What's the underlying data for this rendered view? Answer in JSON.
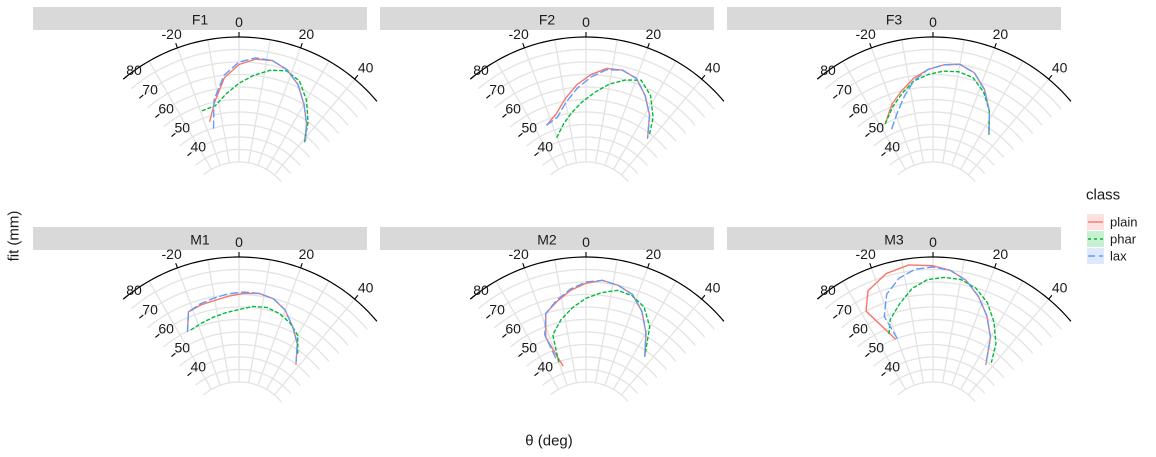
{
  "chart_data": {
    "type": "line",
    "coord": "polar",
    "x_axis_title": "θ (deg)",
    "y_axis_title": "fit (mm)",
    "theta_range": [
      -40,
      50
    ],
    "theta_ticks": [
      -20,
      0,
      20,
      40
    ],
    "r_range": [
      30,
      80
    ],
    "r_ticks": [
      40,
      50,
      60,
      70,
      80
    ],
    "legend": {
      "title": "class",
      "position": "right",
      "items": [
        {
          "key": "plain",
          "label": "plain",
          "color": "#F8766D",
          "dash": "none"
        },
        {
          "key": "phar",
          "label": "phar",
          "color": "#00BA38",
          "dash": "3,3"
        },
        {
          "key": "lax",
          "label": "lax",
          "color": "#619CFF",
          "dash": "7,4"
        }
      ]
    },
    "panels": [
      {
        "label": "F1",
        "series": {
          "plain": {
            "theta": [
              -17,
              -12,
              -6,
              0,
              6,
              12,
              18,
              24,
              30,
              36,
              41
            ],
            "r": [
              48,
              55,
              64,
              69,
              71.5,
              72,
              70,
              66,
              60,
              54,
              48
            ]
          },
          "phar": {
            "theta": [
              -19,
              -12,
              -6,
              0,
              6,
              12,
              18,
              24,
              30,
              36,
              41
            ],
            "r": [
              53,
              53.5,
              57.5,
              61.5,
              65,
              68,
              69.5,
              67.5,
              62,
              55,
              48
            ]
          },
          "lax": {
            "theta": [
              -16,
              -12,
              -6,
              0,
              6,
              12,
              18,
              24,
              30,
              36,
              41
            ],
            "r": [
              45,
              56,
              65,
              70,
              72,
              72,
              70,
              66,
              60,
              54,
              48.5
            ]
          }
        }
      },
      {
        "label": "F2",
        "series": {
          "plain": {
            "theta": [
              -23,
              -16,
              -10,
              -4,
              2,
              8,
              14,
              20,
              26,
              32,
              38
            ],
            "r": [
              48,
              51,
              56,
              61,
              65,
              68,
              68.5,
              67,
              62,
              56,
              48
            ]
          },
          "phar": {
            "theta": [
              -20,
              -14,
              -8,
              -2,
              4,
              10,
              16,
              22,
              28,
              34,
              38
            ],
            "r": [
              42,
              46,
              50,
              54,
              58,
              62,
              65,
              67,
              63,
              56,
              49
            ]
          },
          "lax": {
            "theta": [
              -23,
              -16,
              -10,
              -4,
              2,
              8,
              14,
              20,
              26,
              32,
              38
            ],
            "r": [
              48,
              49.5,
              54.5,
              59.5,
              64,
              67.5,
              68.5,
              67,
              62,
              56,
              48
            ]
          }
        }
      },
      {
        "label": "F3",
        "series": {
          "plain": {
            "theta": [
              -27,
              -20,
              -14,
              -8,
              -2,
              4,
              10,
              16,
              22,
              28,
              34
            ],
            "r": [
              50,
              56,
              60,
              64,
              67,
              69,
              70,
              68,
              63,
              56,
              48
            ]
          },
          "phar": {
            "theta": [
              -27,
              -20,
              -14,
              -8,
              -2,
              4,
              10,
              16,
              22,
              28,
              34
            ],
            "r": [
              50,
              55,
              59,
              63,
              65,
              66.5,
              67,
              66,
              62,
              56,
              48
            ]
          },
          "lax": {
            "theta": [
              -25,
              -19,
              -13,
              -8,
              -2,
              4,
              10,
              16,
              22,
              28,
              34
            ],
            "r": [
              47,
              52,
              58,
              63,
              67,
              69,
              70,
              68,
              63,
              56,
              48
            ]
          }
        }
      },
      {
        "label": "M1",
        "series": {
          "plain": {
            "theta": [
              -26,
              -22,
              -16,
              -10,
              -4,
              2,
              8,
              14,
              20,
              26,
              32,
              38
            ],
            "r": [
              55,
              62,
              63,
              63.5,
              64.5,
              65.5,
              66,
              65,
              62,
              57,
              52,
              45
            ]
          },
          "phar": {
            "theta": [
              -24,
              -18,
              -12,
              -6,
              0,
              6,
              12,
              18,
              24,
              30,
              35
            ],
            "r": [
              55,
              56,
              57,
              58,
              59,
              60.5,
              61,
              60,
              58,
              55,
              49
            ]
          },
          "lax": {
            "theta": [
              -26,
              -22,
              -16,
              -10,
              -4,
              2,
              8,
              14,
              20,
              26,
              32,
              37
            ],
            "r": [
              55,
              62,
              63.5,
              64.5,
              65.5,
              66,
              66,
              65,
              62,
              57,
              52,
              46
            ]
          }
        }
      },
      {
        "label": "M2",
        "series": {
          "plain": {
            "theta": [
              -18,
              -22,
              -18,
              -12,
              -6,
              0,
              6,
              12,
              18,
              24,
              30,
              36
            ],
            "r": [
              38,
              51,
              60,
              63.5,
              67,
              69.5,
              71,
              70,
              68,
              63,
              56,
              48
            ]
          },
          "phar": {
            "theta": [
              -20,
              -18,
              -12,
              -6,
              0,
              6,
              12,
              18,
              24,
              30,
              36
            ],
            "r": [
              40,
              51,
              56,
              60,
              63.5,
              66,
              68,
              67.5,
              65,
              59,
              48
            ]
          },
          "lax": {
            "theta": [
              -21,
              -22,
              -18,
              -12,
              -6,
              0,
              6,
              12,
              18,
              24,
              30,
              36
            ],
            "r": [
              42,
              52,
              60,
              64,
              67.5,
              70,
              71,
              70,
              68,
              63,
              56,
              48
            ]
          }
        }
      },
      {
        "label": "M3",
        "series": {
          "plain": {
            "theta": [
              -21,
              -28,
              -24,
              -16,
              -8,
              0,
              6,
              12,
              18,
              24,
              30,
              36
            ],
            "r": [
              50,
              65,
              72,
              76,
              77.5,
              76.5,
              75,
              72,
              67,
              61,
              54,
              44
            ]
          },
          "phar": {
            "theta": [
              -23,
              -20,
              -14,
              -8,
              -2,
              4,
              10,
              16,
              22,
              28,
              34,
              38
            ],
            "r": [
              53,
              58,
              63,
              68,
              71,
              72,
              72,
              70,
              66,
              60,
              53,
              46
            ]
          },
          "lax": {
            "theta": [
              -20,
              -22,
              -18,
              -12,
              -6,
              0,
              6,
              12,
              18,
              24,
              30,
              36
            ],
            "r": [
              50,
              60,
              68,
              73,
              75.5,
              76,
              75,
              72,
              67,
              61,
              54,
              44
            ]
          }
        }
      }
    ]
  }
}
